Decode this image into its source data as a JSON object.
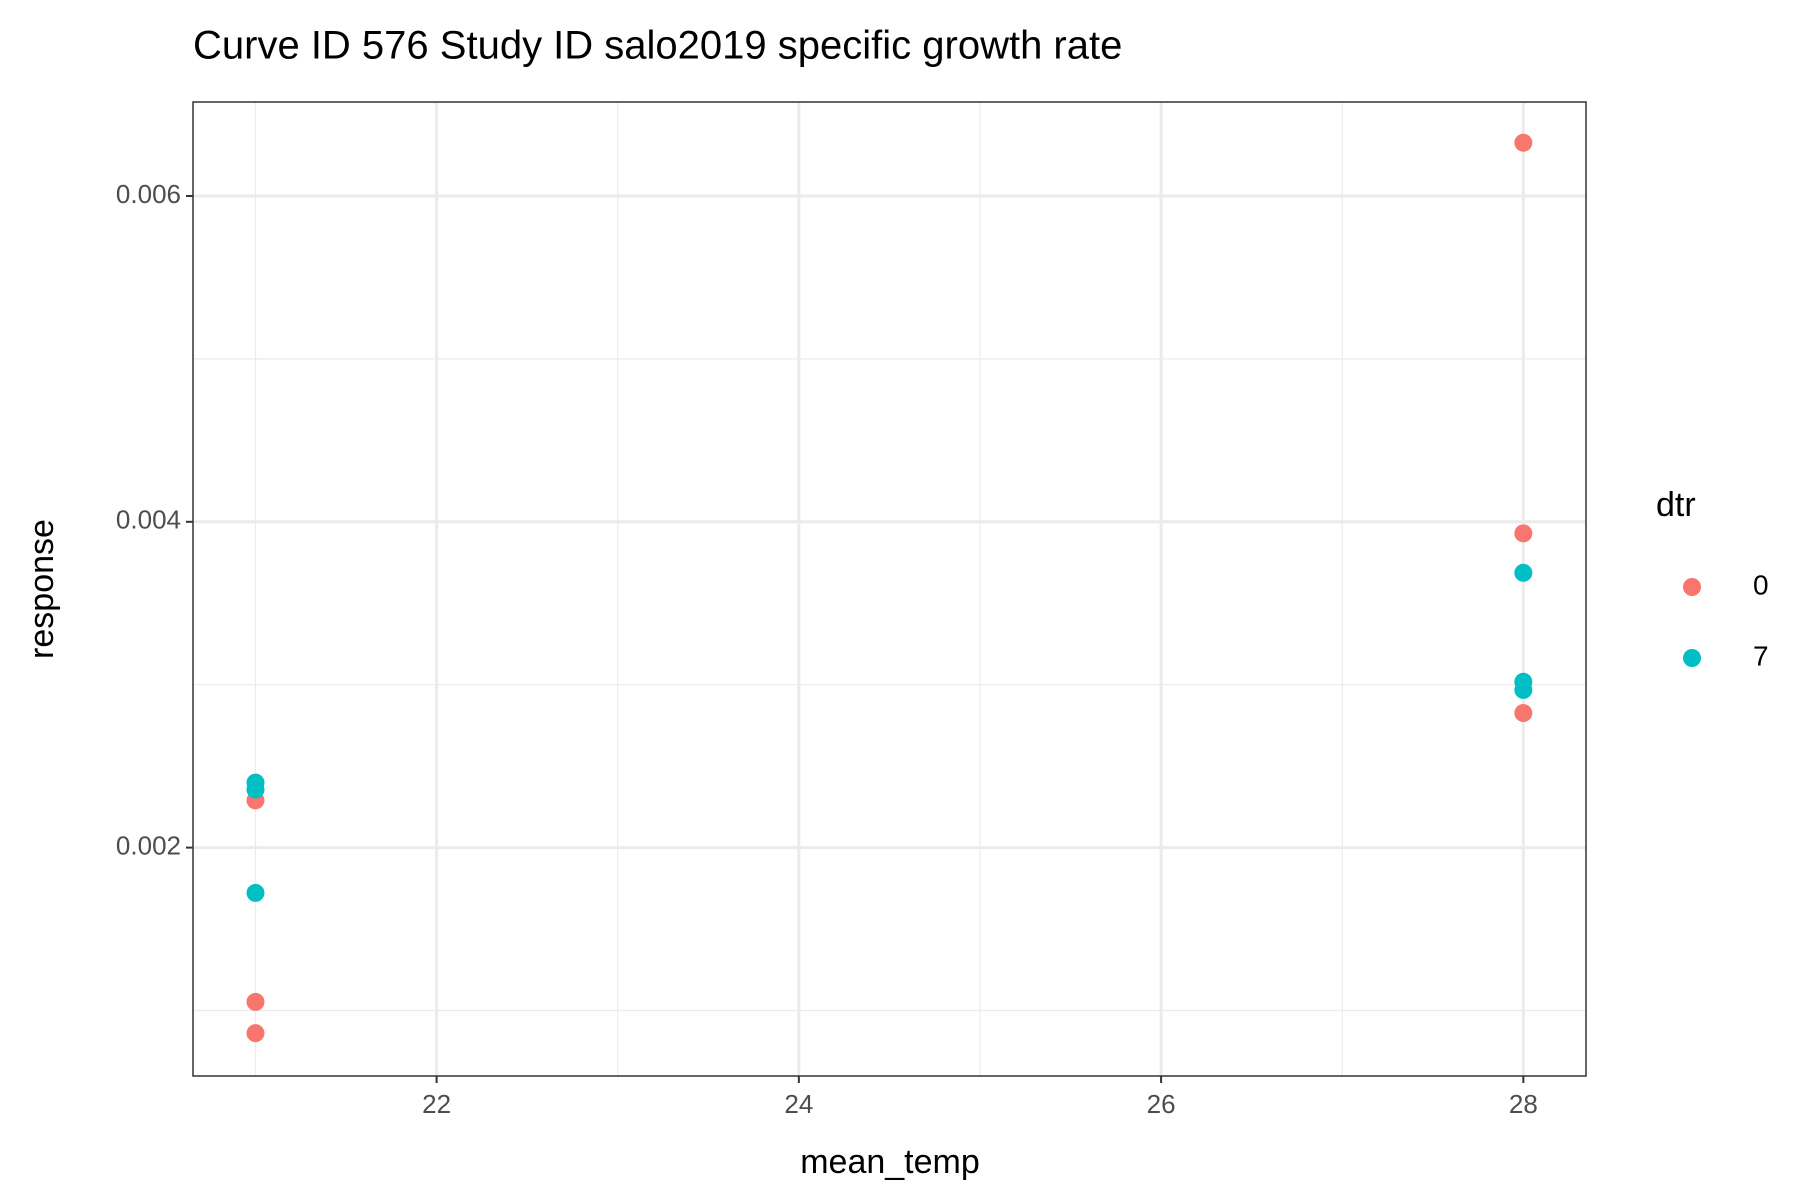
{
  "chart_data": {
    "type": "scatter",
    "title": "Curve ID 576 Study ID salo2019 specific growth rate",
    "x_label": "mean_temp",
    "y_label": "response",
    "legend_title": "dtr",
    "legend_position": "right",
    "xlim": [
      20.655,
      28.346
    ],
    "ylim": [
      0.000598,
      0.006577
    ],
    "xticks": [
      22,
      24,
      26,
      28
    ],
    "yticks": [
      0.002,
      0.004,
      0.006
    ],
    "xminor": [
      21,
      23,
      25,
      27
    ],
    "yminor": [
      0.001,
      0.003,
      0.005
    ],
    "grid": true,
    "series": [
      {
        "name": "0",
        "color": "#F8766D",
        "x": [
          21,
          21,
          21,
          28,
          28,
          28
        ],
        "values": [
          0.00229,
          0.001053,
          0.000861,
          0.006327,
          0.003929,
          0.002826
        ]
      },
      {
        "name": "7",
        "color": "#00BFC4",
        "x": [
          21,
          21,
          21,
          28,
          28,
          28
        ],
        "values": [
          0.002399,
          0.002356,
          0.001722,
          0.003687,
          0.003018,
          0.002968
        ]
      }
    ]
  }
}
